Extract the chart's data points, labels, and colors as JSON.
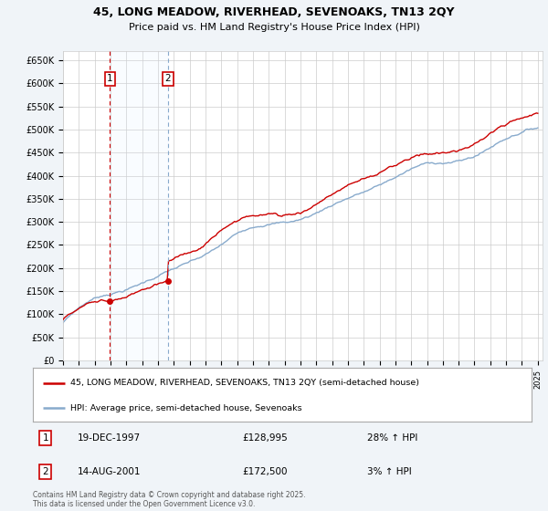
{
  "title_line1": "45, LONG MEADOW, RIVERHEAD, SEVENOAKS, TN13 2QY",
  "title_line2": "Price paid vs. HM Land Registry's House Price Index (HPI)",
  "ylabel_ticks": [
    "£0",
    "£50K",
    "£100K",
    "£150K",
    "£200K",
    "£250K",
    "£300K",
    "£350K",
    "£400K",
    "£450K",
    "£500K",
    "£550K",
    "£600K",
    "£650K"
  ],
  "ytick_vals": [
    0,
    50000,
    100000,
    150000,
    200000,
    250000,
    300000,
    350000,
    400000,
    450000,
    500000,
    550000,
    600000,
    650000
  ],
  "ylim": [
    0,
    670000
  ],
  "x_start_year": 1995,
  "x_end_year": 2025,
  "sale1_year": 1997.97,
  "sale1_price": 128995,
  "sale2_year": 2001.62,
  "sale2_price": 172500,
  "legend_label_red": "45, LONG MEADOW, RIVERHEAD, SEVENOAKS, TN13 2QY (semi-detached house)",
  "legend_label_blue": "HPI: Average price, semi-detached house, Sevenoaks",
  "annotation1_label": "1",
  "annotation1_date": "19-DEC-1997",
  "annotation1_price": "£128,995",
  "annotation1_hpi": "28% ↑ HPI",
  "annotation2_label": "2",
  "annotation2_date": "14-AUG-2001",
  "annotation2_price": "£172,500",
  "annotation2_hpi": "3% ↑ HPI",
  "footer": "Contains HM Land Registry data © Crown copyright and database right 2025.\nThis data is licensed under the Open Government Licence v3.0.",
  "red_color": "#cc0000",
  "blue_color": "#88aacc",
  "shade_color": "#ddeeff",
  "background_color": "#f0f4f8",
  "plot_bg": "#ffffff",
  "grid_color": "#cccccc"
}
